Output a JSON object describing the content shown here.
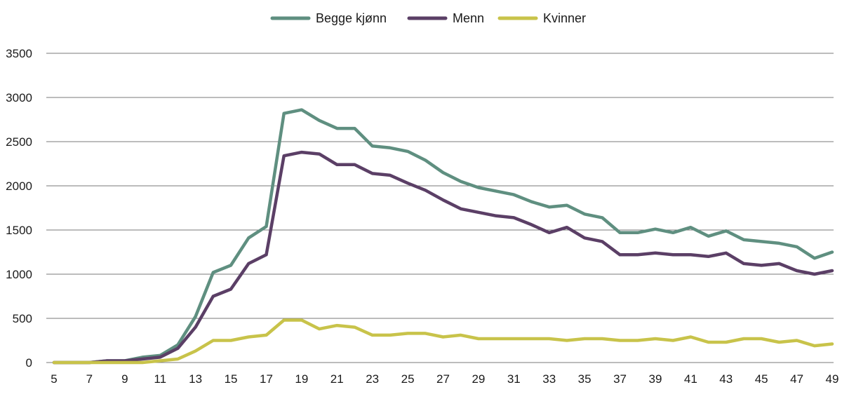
{
  "chart_data": {
    "type": "line",
    "title": "",
    "xlabel": "",
    "ylabel": "",
    "x": [
      5,
      6,
      7,
      8,
      9,
      10,
      11,
      12,
      13,
      14,
      15,
      16,
      17,
      18,
      19,
      20,
      21,
      22,
      23,
      24,
      25,
      26,
      27,
      28,
      29,
      30,
      31,
      32,
      33,
      34,
      35,
      36,
      37,
      38,
      39,
      40,
      41,
      42,
      43,
      44,
      45,
      46,
      47,
      48,
      49
    ],
    "x_tick_labels": [
      "5",
      "7",
      "9",
      "11",
      "13",
      "15",
      "17",
      "19",
      "21",
      "23",
      "25",
      "27",
      "29",
      "31",
      "33",
      "35",
      "37",
      "39",
      "41",
      "43",
      "45",
      "47",
      "49"
    ],
    "y_tick_labels": [
      "0",
      "500",
      "1000",
      "1500",
      "2000",
      "2500",
      "3000",
      "3500"
    ],
    "ylim": [
      0,
      3500
    ],
    "grid": "horizontal",
    "legend_position": "top-center",
    "series": [
      {
        "name": "Begge kjønn",
        "color": "#5f8f80",
        "values": [
          0,
          0,
          0,
          20,
          20,
          60,
          80,
          200,
          520,
          1020,
          1100,
          1410,
          1540,
          2820,
          2860,
          2740,
          2650,
          2650,
          2450,
          2430,
          2390,
          2290,
          2150,
          2050,
          1980,
          1940,
          1900,
          1820,
          1760,
          1780,
          1680,
          1640,
          1470,
          1470,
          1510,
          1470,
          1530,
          1430,
          1490,
          1390,
          1370,
          1350,
          1310,
          1180,
          1250
        ]
      },
      {
        "name": "Menn",
        "color": "#5b3f66",
        "values": [
          0,
          0,
          0,
          20,
          20,
          40,
          60,
          160,
          400,
          750,
          830,
          1120,
          1220,
          2340,
          2380,
          2360,
          2240,
          2240,
          2140,
          2120,
          2030,
          1950,
          1840,
          1740,
          1700,
          1660,
          1640,
          1560,
          1470,
          1530,
          1410,
          1370,
          1220,
          1220,
          1240,
          1220,
          1220,
          1200,
          1240,
          1120,
          1100,
          1120,
          1040,
          1000,
          1040
        ]
      },
      {
        "name": "Kvinner",
        "color": "#c8c34a",
        "values": [
          0,
          0,
          0,
          0,
          0,
          0,
          20,
          40,
          130,
          250,
          250,
          290,
          310,
          480,
          480,
          380,
          420,
          400,
          310,
          310,
          330,
          330,
          290,
          310,
          270,
          270,
          270,
          270,
          270,
          250,
          270,
          270,
          250,
          250,
          270,
          250,
          290,
          230,
          230,
          270,
          270,
          230,
          250,
          190,
          210
        ]
      }
    ]
  }
}
